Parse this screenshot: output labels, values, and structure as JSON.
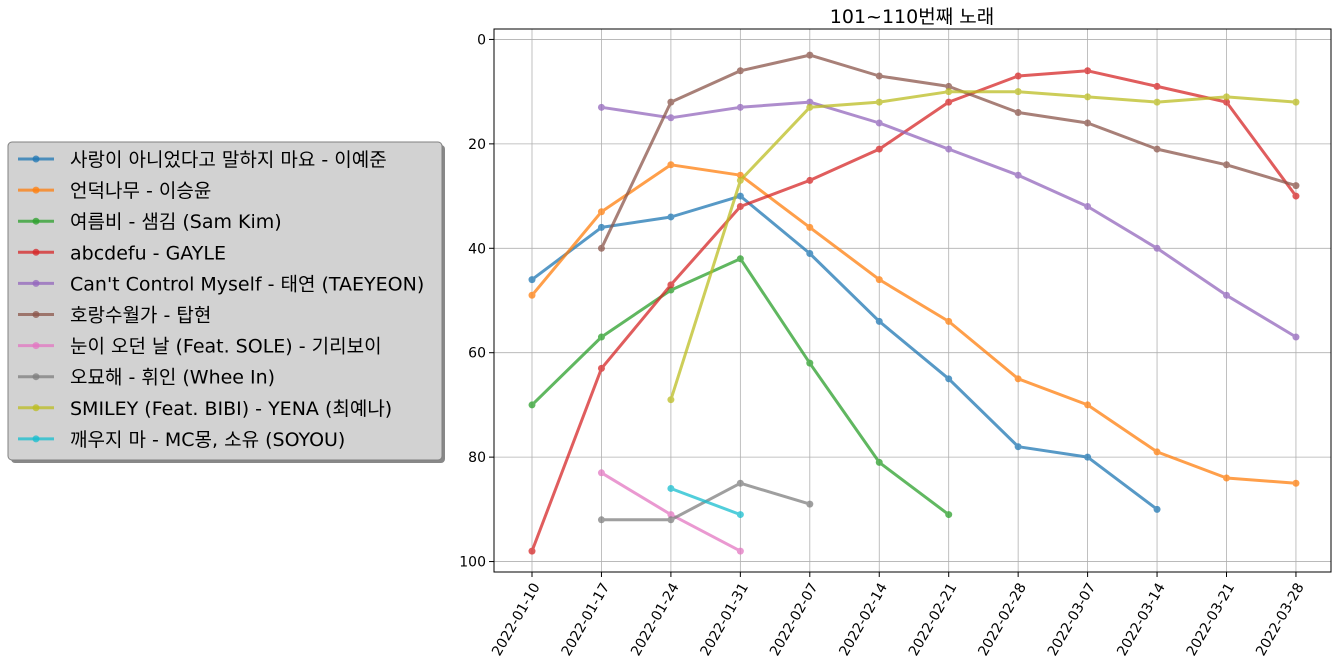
{
  "chart_data": {
    "type": "line",
    "title": "101~110번째 노래",
    "xlabel": "",
    "ylabel": "",
    "ylim": [
      102,
      -2
    ],
    "y_inverted": true,
    "yticks": [
      0,
      20,
      40,
      60,
      80,
      100
    ],
    "grid": true,
    "legend_placement": "left, outside plot",
    "categories": [
      "2022-01-10",
      "2022-01-17",
      "2022-01-24",
      "2022-01-31",
      "2022-02-07",
      "2022-02-14",
      "2022-02-21",
      "2022-02-28",
      "2022-03-07",
      "2022-03-14",
      "2022-03-21",
      "2022-03-28"
    ],
    "series": [
      {
        "name": "사랑이 아니었다고 말하지 마요 - 이예준",
        "color": "#1f77b4",
        "values": [
          46,
          36,
          34,
          30,
          41,
          54,
          65,
          78,
          80,
          90,
          null,
          null
        ]
      },
      {
        "name": "언덕나무 - 이승윤",
        "color": "#ff7f0e",
        "values": [
          49,
          33,
          24,
          26,
          36,
          46,
          54,
          65,
          70,
          79,
          84,
          85
        ]
      },
      {
        "name": "여름비 - 샘김 (Sam Kim)",
        "color": "#2ca02c",
        "values": [
          70,
          57,
          48,
          42,
          62,
          81,
          91,
          null,
          null,
          null,
          null,
          null
        ]
      },
      {
        "name": "abcdefu - GAYLE",
        "color": "#d62728",
        "values": [
          98,
          63,
          47,
          32,
          27,
          21,
          12,
          7,
          6,
          9,
          12,
          30
        ]
      },
      {
        "name": "Can't Control Myself - 태연 (TAEYEON)",
        "color": "#9467bd",
        "values": [
          null,
          13,
          15,
          13,
          12,
          16,
          21,
          26,
          32,
          40,
          49,
          57
        ]
      },
      {
        "name": "호랑수월가 - 탑현",
        "color": "#8c564b",
        "values": [
          null,
          40,
          12,
          6,
          3,
          7,
          9,
          14,
          16,
          21,
          24,
          28
        ]
      },
      {
        "name": "눈이 오던 날 (Feat. SOLE) - 기리보이",
        "color": "#e377c2",
        "values": [
          null,
          83,
          91,
          98,
          null,
          null,
          null,
          null,
          null,
          null,
          null,
          null
        ]
      },
      {
        "name": "오묘해 - 휘인 (Whee In)",
        "color": "#7f7f7f",
        "values": [
          null,
          92,
          92,
          85,
          89,
          null,
          null,
          null,
          null,
          null,
          null,
          null
        ]
      },
      {
        "name": "SMILEY (Feat. BIBI) - YENA (최예나)",
        "color": "#bcbd22",
        "values": [
          null,
          null,
          69,
          27,
          13,
          12,
          10,
          10,
          11,
          12,
          11,
          12
        ]
      },
      {
        "name": "깨우지 마 - MC몽, 소유 (SOYOU)",
        "color": "#17becf",
        "values": [
          null,
          null,
          86,
          91,
          null,
          null,
          null,
          null,
          null,
          null,
          null,
          null
        ]
      }
    ]
  }
}
